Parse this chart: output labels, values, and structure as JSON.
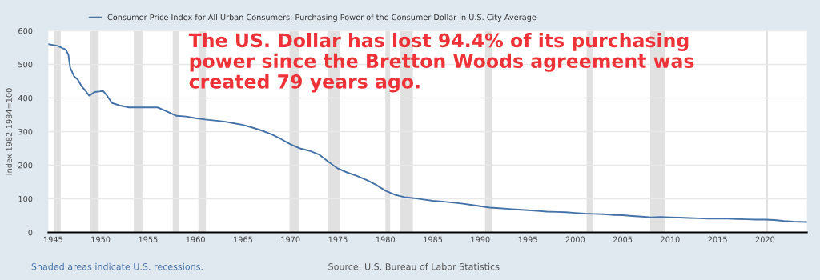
{
  "chart_data": {
    "type": "line",
    "ylabel": "Index 1982-1984=100",
    "annotations": [
      "The US. Dollar has lost 94.4% of its purchasing\npower since the Bretton Woods agreement was\ncreated 79 years ago.",
      "Shaded areas indicate U.S. recessions.",
      "Source: U.S. Bureau of Labor Statistics"
    ],
    "series": [
      {
        "name": "Consumer Price Index for All Urban Consumers: Purchasing Power of the Consumer Dollar in U.S. City Average",
        "color": "#4572a7",
        "x": [
          1944.5,
          1945.5,
          1946.0,
          1946.3,
          1946.6,
          1946.8,
          1947.2,
          1947.6,
          1948.0,
          1948.4,
          1948.8,
          1949.4,
          1950.0,
          1950.2,
          1950.6,
          1951.2,
          1952,
          1953,
          1954,
          1955,
          1956,
          1957,
          1958,
          1959,
          1960,
          1961,
          1962,
          1963,
          1964,
          1965,
          1966,
          1967,
          1968,
          1969,
          1970,
          1971,
          1972,
          1973,
          1974,
          1975,
          1976,
          1977,
          1978,
          1979,
          1980,
          1981,
          1982,
          1983,
          1984,
          1985,
          1986,
          1987,
          1988,
          1989,
          1990,
          1991,
          1992,
          1993,
          1994,
          1995,
          1996,
          1997,
          1998,
          1999,
          2000,
          2001,
          2002,
          2003,
          2004,
          2005,
          2006,
          2007,
          2008,
          2009,
          2010,
          2011,
          2012,
          2013,
          2014,
          2015,
          2016,
          2017,
          2018,
          2019,
          2020,
          2021,
          2022,
          2023,
          2024.4
        ],
        "values": [
          560,
          555,
          548,
          545,
          530,
          490,
          465,
          455,
          435,
          422,
          407,
          418,
          420,
          423,
          410,
          385,
          378,
          372,
          372,
          372,
          372,
          360,
          347,
          345,
          340,
          336,
          333,
          330,
          325,
          320,
          312,
          303,
          292,
          278,
          262,
          250,
          243,
          232,
          210,
          190,
          178,
          168,
          156,
          142,
          124,
          112,
          105,
          102,
          98,
          94,
          92,
          89,
          86,
          82,
          78,
          74,
          72,
          70,
          68,
          66,
          64,
          62,
          61,
          60,
          58,
          56,
          55,
          54,
          52,
          51,
          49,
          47,
          45,
          46,
          45,
          44,
          43,
          42,
          41,
          41,
          41,
          40,
          39,
          38,
          38,
          37,
          34,
          32,
          31
        ]
      }
    ],
    "bands": [
      {
        "axis": "x",
        "from": 1945.1,
        "to": 1945.8,
        "color": "#e1e1e1"
      },
      {
        "axis": "x",
        "from": 1948.9,
        "to": 1949.8,
        "color": "#e1e1e1"
      },
      {
        "axis": "x",
        "from": 1953.5,
        "to": 1954.4,
        "color": "#e1e1e1"
      },
      {
        "axis": "x",
        "from": 1957.6,
        "to": 1958.3,
        "color": "#e1e1e1"
      },
      {
        "axis": "x",
        "from": 1960.3,
        "to": 1961.1,
        "color": "#e1e1e1"
      },
      {
        "axis": "x",
        "from": 1969.9,
        "to": 1970.9,
        "color": "#e1e1e1"
      },
      {
        "axis": "x",
        "from": 1973.9,
        "to": 1975.2,
        "color": "#e1e1e1"
      },
      {
        "axis": "x",
        "from": 1980.0,
        "to": 1980.5,
        "color": "#e1e1e1"
      },
      {
        "axis": "x",
        "from": 1981.5,
        "to": 1982.9,
        "color": "#e1e1e1"
      },
      {
        "axis": "x",
        "from": 1990.5,
        "to": 1991.2,
        "color": "#e1e1e1"
      },
      {
        "axis": "x",
        "from": 2001.2,
        "to": 2001.9,
        "color": "#e1e1e1"
      },
      {
        "axis": "x",
        "from": 2007.9,
        "to": 2009.5,
        "color": "#e1e1e1"
      },
      {
        "axis": "x",
        "from": 2020.1,
        "to": 2020.3,
        "color": "#e1e1e1"
      }
    ],
    "xlim": [
      1944.5,
      2024.4
    ],
    "xticks": [
      1945,
      1950,
      1955,
      1960,
      1965,
      1970,
      1975,
      1980,
      1985,
      1990,
      1995,
      2000,
      2005,
      2010,
      2015,
      2020
    ],
    "ylim": [
      0,
      600
    ],
    "yticks": [
      0,
      100,
      200,
      300,
      400,
      500,
      600
    ],
    "grid": "y",
    "legend": "top left",
    "marker": "none",
    "line_style": "solid"
  }
}
